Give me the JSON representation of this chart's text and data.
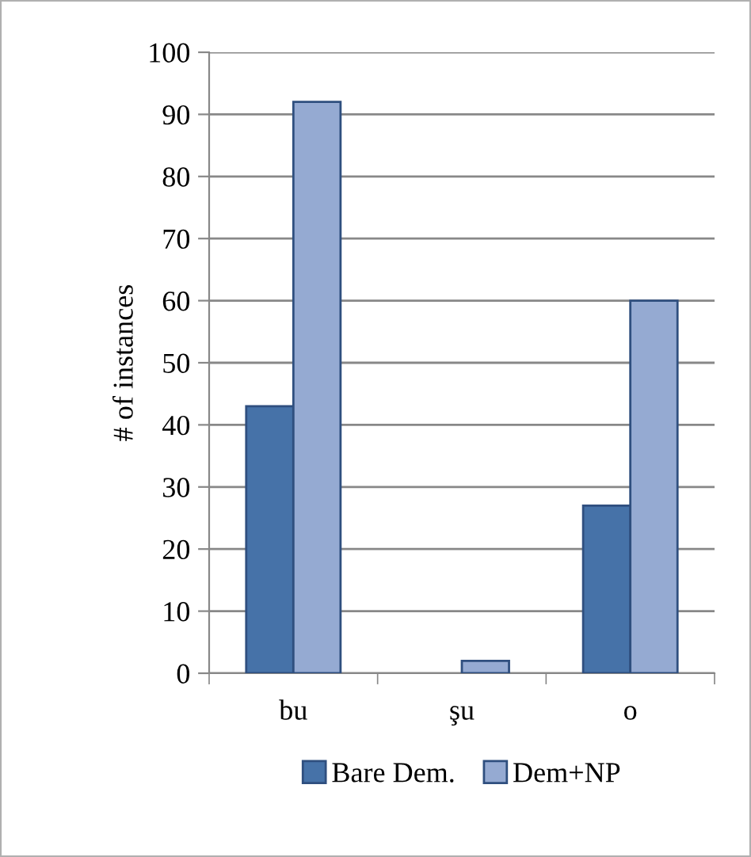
{
  "chart_data": {
    "type": "bar",
    "ylabel": "# of instances",
    "categories": [
      "bu",
      "şu",
      "o"
    ],
    "series": [
      {
        "name": "Bare Dem.",
        "color": "#4672a8",
        "values": [
          43,
          0,
          27
        ]
      },
      {
        "name": "Dem+NP",
        "color": "#95aad2",
        "values": [
          92,
          2,
          60
        ]
      }
    ],
    "ylim": [
      0,
      100
    ],
    "yticks": [
      0,
      10,
      20,
      30,
      40,
      50,
      60,
      70,
      80,
      90,
      100
    ],
    "grid": "y",
    "legend": "bottom"
  }
}
